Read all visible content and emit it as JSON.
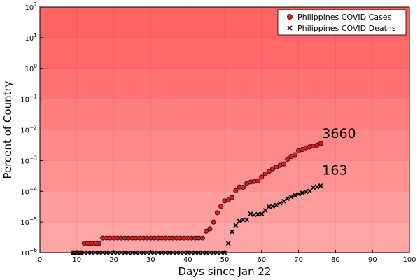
{
  "chart_data": {
    "type": "scatter",
    "xlabel": "Days since Jan 22",
    "ylabel": "Percent of Country",
    "xlim": [
      0,
      100
    ],
    "ylim": [
      1e-06,
      100
    ],
    "yscale": "log",
    "x_ticks": [
      0,
      10,
      20,
      30,
      40,
      50,
      60,
      70,
      80,
      90,
      100
    ],
    "y_ticks": [
      {
        "base": "10",
        "exp": "2"
      },
      {
        "base": "10",
        "exp": "1"
      },
      {
        "base": "10",
        "exp": "0"
      },
      {
        "base": "10",
        "exp": "−1"
      },
      {
        "base": "10",
        "exp": "−2"
      },
      {
        "base": "10",
        "exp": "−3"
      },
      {
        "base": "10",
        "exp": "−4"
      },
      {
        "base": "10",
        "exp": "−5"
      },
      {
        "base": "10",
        "exp": "−6"
      }
    ],
    "grid": true,
    "legend_position": "top-right",
    "background_bands": [
      "#ff6363",
      "#ff6969",
      "#ff7272",
      "#ff7f7f",
      "#ff8989",
      "#ff9292",
      "#ff9c9c",
      "#ffa5a5",
      "#ffb1b1"
    ],
    "series": [
      {
        "name": "Philippines COVID Cases",
        "marker": "circle",
        "color": "#e31a1c",
        "x": [
          9,
          10,
          11,
          12,
          13,
          14,
          15,
          16,
          17,
          18,
          19,
          20,
          21,
          22,
          23,
          24,
          25,
          26,
          27,
          28,
          29,
          30,
          31,
          32,
          33,
          34,
          35,
          36,
          37,
          38,
          39,
          40,
          41,
          42,
          43,
          44,
          45,
          46,
          47,
          48,
          49,
          50,
          51,
          52,
          53,
          54,
          55,
          56,
          57,
          58,
          59,
          60,
          61,
          62,
          63,
          64,
          65,
          66,
          67,
          68,
          69,
          70,
          71,
          72,
          73,
          74,
          75,
          76
        ],
        "y": [
          1e-06,
          1e-06,
          1e-06,
          2e-06,
          2e-06,
          2e-06,
          2e-06,
          2e-06,
          3e-06,
          3e-06,
          3e-06,
          3e-06,
          3e-06,
          3e-06,
          3e-06,
          3e-06,
          3e-06,
          3e-06,
          3e-06,
          3e-06,
          3e-06,
          3e-06,
          3e-06,
          3e-06,
          3e-06,
          3e-06,
          3e-06,
          3e-06,
          3e-06,
          3e-06,
          3e-06,
          3e-06,
          3e-06,
          3e-06,
          3e-06,
          3e-06,
          5e-06,
          6e-06,
          1e-05,
          2e-05,
          3.2e-05,
          4.9e-05,
          5.2e-05,
          6.3e-05,
          0.000105,
          0.000138,
          0.000135,
          0.00018,
          0.0002,
          0.00021,
          0.00022,
          0.00029,
          0.00037,
          0.00045,
          0.00054,
          0.00062,
          0.0007,
          0.00078,
          0.0011,
          0.00135,
          0.00155,
          0.0021,
          0.0023,
          0.0026,
          0.0028,
          0.003,
          0.0032,
          0.0036
        ],
        "end_label": "3660"
      },
      {
        "name": "Philippines COVID Deaths",
        "marker": "x",
        "color": "#000000",
        "x": [
          9,
          10,
          11,
          12,
          13,
          14,
          15,
          16,
          17,
          18,
          19,
          20,
          21,
          22,
          23,
          24,
          25,
          26,
          27,
          28,
          29,
          30,
          31,
          32,
          33,
          34,
          35,
          36,
          37,
          38,
          39,
          40,
          41,
          42,
          43,
          44,
          45,
          46,
          47,
          48,
          49,
          50,
          51,
          52,
          53,
          54,
          55,
          56,
          57,
          58,
          59,
          60,
          61,
          62,
          63,
          64,
          65,
          66,
          67,
          68,
          69,
          70,
          71,
          72,
          73,
          74,
          75,
          76
        ],
        "y": [
          1e-06,
          1e-06,
          1e-06,
          1e-06,
          1e-06,
          1e-06,
          1e-06,
          1e-06,
          1e-06,
          1e-06,
          1e-06,
          1e-06,
          1e-06,
          1e-06,
          1e-06,
          1e-06,
          1e-06,
          1e-06,
          1e-06,
          1e-06,
          1e-06,
          1e-06,
          1e-06,
          1e-06,
          1e-06,
          1e-06,
          1e-06,
          1e-06,
          1e-06,
          1e-06,
          1e-06,
          1e-06,
          1e-06,
          1e-06,
          1e-06,
          1e-06,
          1e-06,
          1e-06,
          1e-06,
          1e-06,
          1e-06,
          1e-06,
          2e-06,
          4.8e-06,
          7.8e-06,
          1.07e-05,
          1.18e-05,
          1.18e-05,
          1.85e-05,
          1.72e-05,
          1.78e-05,
          1.85e-05,
          2.38e-05,
          3.15e-05,
          3.25e-05,
          3.58e-05,
          4.1e-05,
          4.75e-05,
          5.8e-05,
          6.6e-05,
          7.4e-05,
          8.1e-05,
          8.9e-05,
          9.6e-05,
          0.000102,
          0.000133,
          0.000141,
          0.000151
        ],
        "end_label": "163"
      }
    ]
  }
}
